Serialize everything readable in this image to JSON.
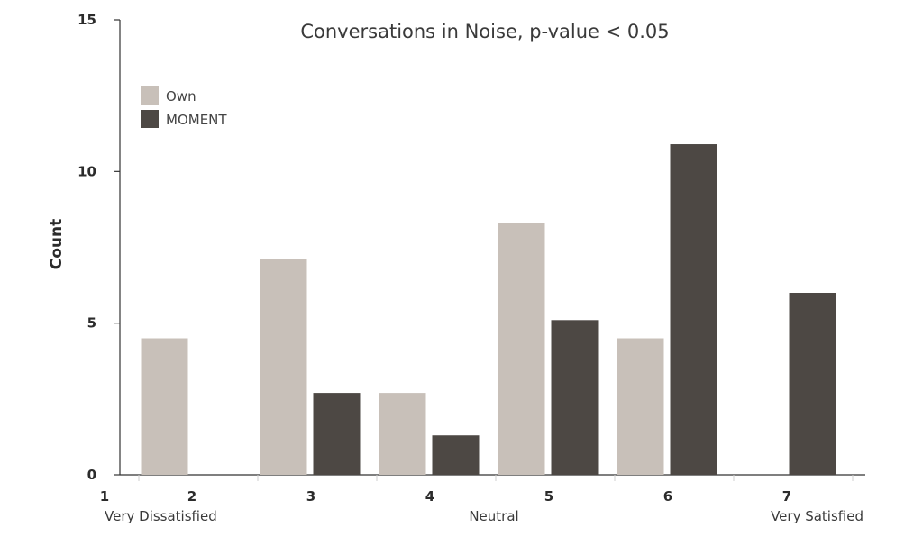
{
  "chart_data": {
    "type": "bar",
    "title": "Conversations in Noise, p-value < 0.05",
    "ylabel": "Count",
    "xlabel": "",
    "categories": [
      "2",
      "3",
      "4",
      "5",
      "6",
      "7"
    ],
    "x_start_label": "1",
    "x_anchor_labels": {
      "1": "Very Dissatisfied",
      "4": "Neutral",
      "7": "Very Satisfied"
    },
    "ylim": [
      0,
      15
    ],
    "yticks": [
      0,
      5,
      10,
      15
    ],
    "series": [
      {
        "name": "Own",
        "values": [
          4.5,
          7.1,
          2.7,
          8.3,
          4.5,
          0
        ],
        "color": "#c8c0b9"
      },
      {
        "name": "MOMENT",
        "values": [
          0,
          2.7,
          1.3,
          5.1,
          10.9,
          6.0
        ],
        "color": "#4d4844"
      }
    ],
    "legend_position": "top-left",
    "grid": false
  }
}
